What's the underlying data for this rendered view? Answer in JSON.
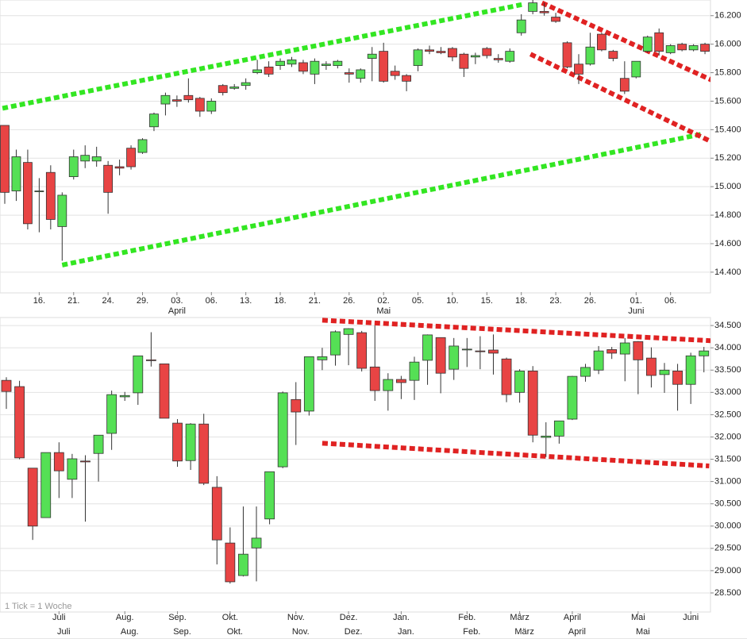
{
  "chart_data": [
    {
      "type": "candlestick",
      "categories": [
        null,
        null,
        null,
        "16.",
        null,
        null,
        "21.",
        null,
        null,
        "24.",
        null,
        null,
        "29.",
        null,
        null,
        "03.",
        null,
        null,
        "06.",
        null,
        null,
        "13.",
        null,
        null,
        "18.",
        null,
        null,
        "21.",
        null,
        null,
        "26.",
        null,
        null,
        "02.",
        null,
        null,
        "05.",
        null,
        null,
        "10.",
        null,
        null,
        "15.",
        null,
        null,
        "18.",
        null,
        null,
        "23.",
        null,
        null,
        "26.",
        null,
        null,
        null,
        "01.",
        null,
        null,
        "06.",
        null,
        null,
        null
      ],
      "months": [
        null,
        null,
        null,
        null,
        null,
        null,
        null,
        null,
        null,
        null,
        null,
        null,
        null,
        null,
        null,
        "April",
        null,
        null,
        null,
        null,
        null,
        null,
        null,
        null,
        null,
        null,
        null,
        null,
        null,
        null,
        null,
        null,
        null,
        "Mai",
        null,
        null,
        null,
        null,
        null,
        null,
        null,
        null,
        null,
        null,
        null,
        null,
        null,
        null,
        null,
        null,
        null,
        null,
        null,
        null,
        null,
        "Juni",
        null,
        null,
        null,
        null,
        null,
        null
      ],
      "open": [
        15430,
        14970,
        15170,
        14970,
        15100,
        14720,
        15070,
        15180,
        15180,
        15150,
        15140,
        15270,
        15240,
        15420,
        15580,
        15610,
        15640,
        15620,
        15530,
        15710,
        15690,
        15710,
        15800,
        15840,
        15850,
        15860,
        15870,
        15790,
        15850,
        15850,
        15800,
        15760,
        15900,
        15950,
        15810,
        15780,
        15850,
        15960,
        15950,
        15970,
        15930,
        15910,
        15970,
        15900,
        15880,
        16080,
        16230,
        16230,
        16190,
        16010,
        15860,
        15860,
        16070,
        15950,
        15760,
        15770,
        15950,
        16080,
        15940,
        16000,
        15960,
        16000
      ],
      "high": [
        15430,
        15260,
        15260,
        15060,
        15150,
        14960,
        15260,
        15290,
        15280,
        15180,
        15190,
        15290,
        15340,
        15520,
        15660,
        15640,
        15760,
        15630,
        15620,
        15720,
        15720,
        15760,
        15890,
        15880,
        15900,
        15910,
        15890,
        15900,
        15880,
        15890,
        15830,
        15830,
        15980,
        16010,
        15850,
        15790,
        15970,
        15990,
        15980,
        15980,
        15940,
        15940,
        15980,
        15930,
        15970,
        16210,
        16310,
        16290,
        16220,
        16020,
        15930,
        16080,
        16080,
        15960,
        15880,
        15880,
        16060,
        16110,
        16000,
        16010,
        16000,
        16010
      ],
      "low": [
        14880,
        14900,
        14700,
        14680,
        14700,
        14480,
        15050,
        15130,
        15140,
        14810,
        15080,
        15120,
        15230,
        15390,
        15500,
        15560,
        15590,
        15490,
        15510,
        15640,
        15680,
        15680,
        15790,
        15770,
        15820,
        15840,
        15790,
        15720,
        15820,
        15830,
        15730,
        15730,
        15740,
        15730,
        15750,
        15670,
        15810,
        15930,
        15930,
        15880,
        15770,
        15860,
        15900,
        15870,
        15870,
        16060,
        16210,
        16200,
        16150,
        15830,
        15720,
        15850,
        15950,
        15880,
        15650,
        15760,
        15940,
        15920,
        15930,
        15950,
        15950,
        15930
      ],
      "close": [
        14960,
        15210,
        14740,
        14970,
        14770,
        14940,
        15210,
        15220,
        15210,
        14960,
        15130,
        15140,
        15330,
        15510,
        15640,
        15600,
        15610,
        15530,
        15600,
        15660,
        15700,
        15730,
        15820,
        15790,
        15880,
        15890,
        15810,
        15880,
        15860,
        15880,
        15790,
        15820,
        15930,
        15740,
        15780,
        15740,
        15960,
        15950,
        15940,
        15910,
        15830,
        15920,
        15920,
        15890,
        15950,
        16170,
        16290,
        16220,
        16160,
        15840,
        15790,
        15980,
        15960,
        15900,
        15670,
        15880,
        16050,
        15950,
        15990,
        15960,
        15990,
        15950
      ],
      "up_color": "#55e055",
      "down_color": "#e84444",
      "ylim": [
        14260,
        16310
      ],
      "yticks": [
        {
          "value": 14400,
          "label": "14.400"
        },
        {
          "value": 14600,
          "label": "14.600"
        },
        {
          "value": 14800,
          "label": "14.800"
        },
        {
          "value": 15000,
          "label": "15.000"
        },
        {
          "value": 15200,
          "label": "15.200"
        },
        {
          "value": 15400,
          "label": "15.400"
        },
        {
          "value": 15600,
          "label": "15.600"
        },
        {
          "value": 15800,
          "label": "15.800"
        },
        {
          "value": 16000,
          "label": "16.000"
        },
        {
          "value": 16200,
          "label": "16.200"
        }
      ],
      "grid": true,
      "trendlines": [
        {
          "color": "#33e622",
          "x": [
            -0.2,
            45.2
          ],
          "y": [
            15550,
            16280
          ]
        },
        {
          "color": "#33e622",
          "x": [
            5,
            60.8
          ],
          "y": [
            14450,
            15370
          ]
        },
        {
          "color": "#e02222",
          "x": [
            46.8,
            61.8
          ],
          "y": [
            16290,
            15740
          ]
        },
        {
          "color": "#e02222",
          "x": [
            45.8,
            61.7
          ],
          "y": [
            15930,
            15310
          ]
        }
      ]
    },
    {
      "type": "candlestick",
      "note": "1 Tick = 1 Woche",
      "categories": [
        null,
        null,
        null,
        null,
        "Juli",
        null,
        null,
        null,
        null,
        "Aug.",
        null,
        null,
        null,
        "Sep.",
        null,
        null,
        null,
        "Okt.",
        null,
        null,
        null,
        null,
        "Nov.",
        null,
        null,
        null,
        "Dez.",
        null,
        null,
        null,
        "Jan.",
        null,
        null,
        null,
        null,
        "Feb.",
        null,
        null,
        null,
        "März",
        null,
        null,
        null,
        "April",
        null,
        null,
        null,
        null,
        "Mai",
        null,
        null,
        null,
        "Juni",
        null
      ],
      "months": [
        null,
        null,
        null,
        null,
        "Juli",
        null,
        null,
        null,
        null,
        "Aug.",
        null,
        null,
        null,
        "Sep.",
        null,
        null,
        null,
        "Okt.",
        null,
        null,
        null,
        null,
        "Nov.",
        null,
        null,
        null,
        "Dez.",
        null,
        null,
        null,
        "Jan.",
        null,
        null,
        null,
        null,
        "Feb.",
        null,
        null,
        null,
        "März",
        null,
        null,
        null,
        "April",
        null,
        null,
        null,
        null,
        "Mai",
        null,
        null,
        null,
        null,
        null
      ],
      "open": [
        33270,
        33130,
        31300,
        30190,
        31650,
        31050,
        31460,
        31630,
        32080,
        32900,
        32990,
        33730,
        33640,
        32310,
        31470,
        32290,
        30870,
        29620,
        28890,
        29510,
        30160,
        31330,
        32840,
        32580,
        33730,
        33840,
        34300,
        34340,
        33570,
        33040,
        33290,
        33270,
        33720,
        34230,
        33520,
        33960,
        33930,
        33950,
        33750,
        33000,
        33480,
        31990,
        32020,
        32400,
        33360,
        33500,
        33960,
        33860,
        34140,
        33770,
        33400,
        33480,
        33180,
        33820
      ],
      "high": [
        33340,
        33260,
        31300,
        31650,
        31880,
        31620,
        31590,
        32040,
        33040,
        33010,
        33820,
        34350,
        33640,
        32400,
        32310,
        32520,
        31120,
        29970,
        30440,
        30440,
        31220,
        33020,
        33230,
        33800,
        34000,
        34390,
        34440,
        34380,
        34500,
        33430,
        33370,
        33800,
        34300,
        34230,
        34220,
        34220,
        34260,
        34300,
        33780,
        33520,
        33590,
        32330,
        32360,
        33370,
        33640,
        34040,
        34020,
        34220,
        34150,
        34010,
        33660,
        33640,
        33890,
        34020
      ],
      "low": [
        32630,
        31500,
        29690,
        30190,
        30630,
        30630,
        30100,
        31000,
        31710,
        32810,
        32720,
        33580,
        32420,
        31330,
        31260,
        30920,
        29140,
        28710,
        28870,
        28760,
        30040,
        31300,
        31820,
        32480,
        33500,
        33600,
        33610,
        33470,
        32810,
        32590,
        32850,
        32830,
        33170,
        32980,
        33280,
        33570,
        33520,
        33400,
        32780,
        32770,
        31880,
        31550,
        31850,
        32380,
        33240,
        33410,
        33750,
        33250,
        32960,
        33110,
        32990,
        32590,
        32740,
        33450
      ],
      "close": [
        33020,
        31530,
        30000,
        31650,
        31240,
        31510,
        31440,
        32040,
        32950,
        32930,
        33820,
        33720,
        32420,
        31460,
        32290,
        30960,
        29690,
        28750,
        29370,
        29730,
        31220,
        32990,
        32560,
        33800,
        33800,
        34360,
        34430,
        33540,
        33040,
        33290,
        33220,
        33680,
        34290,
        33430,
        34040,
        33970,
        33920,
        33880,
        32950,
        33480,
        32040,
        32020,
        32360,
        33360,
        33560,
        33930,
        33880,
        34110,
        33730,
        33380,
        33500,
        33180,
        33820,
        33930
      ],
      "up_color": "#55e055",
      "down_color": "#e84444",
      "ylim": [
        28090,
        34680
      ],
      "yticks": [
        {
          "value": 28500,
          "label": "28.500"
        },
        {
          "value": 29000,
          "label": "29.000"
        },
        {
          "value": 29500,
          "label": "29.500"
        },
        {
          "value": 30000,
          "label": "30.000"
        },
        {
          "value": 30500,
          "label": "30.500"
        },
        {
          "value": 31000,
          "label": "31.000"
        },
        {
          "value": 31500,
          "label": "31.500"
        },
        {
          "value": 32000,
          "label": "32.000"
        },
        {
          "value": 32500,
          "label": "32.500"
        },
        {
          "value": 33000,
          "label": "33.000"
        },
        {
          "value": 33500,
          "label": "33.500"
        },
        {
          "value": 34000,
          "label": "34.000"
        },
        {
          "value": 34500,
          "label": "34.500"
        }
      ],
      "grid": true,
      "trendlines": [
        {
          "color": "#e02222",
          "x": [
            24,
            53.5
          ],
          "y": [
            34620,
            34160
          ]
        },
        {
          "color": "#e02222",
          "x": [
            24,
            53.4
          ],
          "y": [
            31860,
            31350
          ]
        }
      ]
    }
  ]
}
